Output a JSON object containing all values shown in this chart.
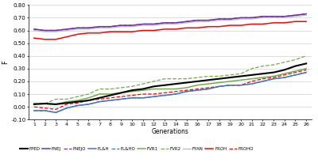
{
  "generations": [
    1,
    2,
    3,
    4,
    5,
    6,
    7,
    8,
    9,
    10,
    11,
    12,
    13,
    14,
    15,
    16,
    17,
    18,
    19,
    20,
    21,
    22,
    23,
    24,
    25,
    26
  ],
  "FPED": [
    0.02,
    0.025,
    0.02,
    0.03,
    0.04,
    0.05,
    0.07,
    0.09,
    0.11,
    0.13,
    0.14,
    0.16,
    0.17,
    0.18,
    0.19,
    0.2,
    0.21,
    0.22,
    0.23,
    0.24,
    0.25,
    0.26,
    0.27,
    0.29,
    0.32,
    0.34
  ],
  "FNEJ": [
    0.61,
    0.6,
    0.6,
    0.61,
    0.62,
    0.62,
    0.63,
    0.63,
    0.64,
    0.64,
    0.65,
    0.65,
    0.66,
    0.66,
    0.67,
    0.68,
    0.68,
    0.69,
    0.69,
    0.7,
    0.7,
    0.71,
    0.71,
    0.71,
    0.72,
    0.73
  ],
  "FNEJO": [
    0.61,
    0.6,
    0.6,
    0.61,
    0.62,
    0.62,
    0.63,
    0.63,
    0.64,
    0.64,
    0.65,
    0.65,
    0.66,
    0.66,
    0.67,
    0.68,
    0.68,
    0.69,
    0.69,
    0.7,
    0.7,
    0.71,
    0.71,
    0.71,
    0.72,
    0.73
  ],
  "FLAH": [
    -0.03,
    -0.03,
    -0.045,
    -0.01,
    0.01,
    0.02,
    0.04,
    0.05,
    0.06,
    0.07,
    0.07,
    0.08,
    0.09,
    0.1,
    0.12,
    0.13,
    0.14,
    0.16,
    0.17,
    0.17,
    0.18,
    0.2,
    0.22,
    0.23,
    0.25,
    0.27
  ],
  "FLAHO": [
    -0.03,
    -0.03,
    -0.045,
    -0.01,
    0.01,
    0.02,
    0.04,
    0.05,
    0.06,
    0.07,
    0.07,
    0.08,
    0.09,
    0.1,
    0.12,
    0.13,
    0.14,
    0.16,
    0.17,
    0.17,
    0.18,
    0.2,
    0.22,
    0.23,
    0.25,
    0.27
  ],
  "FVR1": [
    0.025,
    0.025,
    0.02,
    0.04,
    0.05,
    0.07,
    0.1,
    0.1,
    0.11,
    0.12,
    0.13,
    0.14,
    0.14,
    0.14,
    0.15,
    0.17,
    0.18,
    0.19,
    0.2,
    0.21,
    0.22,
    0.23,
    0.24,
    0.26,
    0.28,
    0.3
  ],
  "FVR2": [
    0.025,
    0.025,
    0.06,
    0.06,
    0.08,
    0.1,
    0.14,
    0.14,
    0.15,
    0.16,
    0.18,
    0.2,
    0.22,
    0.22,
    0.22,
    0.23,
    0.24,
    0.24,
    0.25,
    0.26,
    0.3,
    0.32,
    0.33,
    0.35,
    0.37,
    0.4
  ],
  "FYAN": [
    0.6,
    0.59,
    0.59,
    0.6,
    0.61,
    0.61,
    0.62,
    0.62,
    0.63,
    0.63,
    0.64,
    0.64,
    0.65,
    0.65,
    0.66,
    0.67,
    0.67,
    0.68,
    0.68,
    0.69,
    0.69,
    0.7,
    0.7,
    0.7,
    0.71,
    0.72
  ],
  "FROH": [
    0.54,
    0.53,
    0.53,
    0.55,
    0.57,
    0.58,
    0.58,
    0.59,
    0.59,
    0.59,
    0.6,
    0.6,
    0.61,
    0.61,
    0.62,
    0.62,
    0.63,
    0.63,
    0.64,
    0.64,
    0.65,
    0.65,
    0.66,
    0.66,
    0.67,
    0.67
  ],
  "FROHO": [
    0.0,
    -0.01,
    -0.02,
    0.02,
    0.03,
    0.05,
    0.06,
    0.07,
    0.08,
    0.09,
    0.1,
    0.1,
    0.11,
    0.12,
    0.13,
    0.14,
    0.15,
    0.16,
    0.17,
    0.17,
    0.2,
    0.22,
    0.23,
    0.25,
    0.27,
    0.29
  ],
  "colors": {
    "FPED": "#000000",
    "FNEJ": "#7030a0",
    "FNEJO": "#7030a0",
    "FLAH": "#4472c4",
    "FLAHO": "#4472c4",
    "FVR1": "#70ad47",
    "FVR2": "#70ad47",
    "FYAN": "#c0c0c0",
    "FROH": "#ff0000",
    "FROHO": "#ff0000"
  },
  "xlabel": "Generations",
  "ylabel": "F",
  "ylim": [
    -0.1,
    0.8
  ],
  "yticks": [
    -0.1,
    0.0,
    0.1,
    0.2,
    0.3,
    0.4,
    0.5,
    0.6,
    0.7,
    0.8
  ],
  "figsize": [
    4.0,
    2.1
  ],
  "dpi": 100
}
